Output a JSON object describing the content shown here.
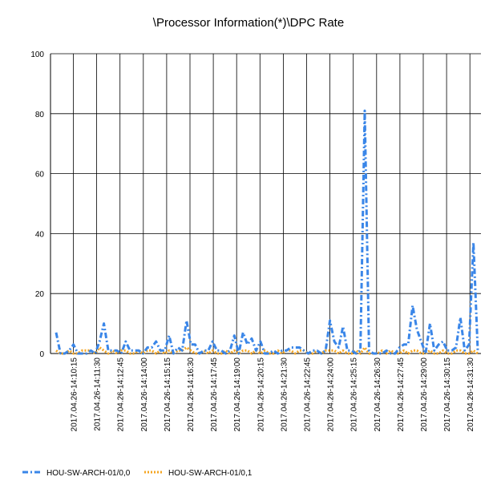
{
  "chart_data": {
    "type": "line",
    "title": "\\Processor Information(*)\\DPC Rate",
    "xlabel": "",
    "ylabel": "",
    "ylim": [
      0,
      100
    ],
    "yticks": [
      0,
      20,
      40,
      60,
      80,
      100
    ],
    "grid": "vertical and horizontal",
    "legend": "bottom-left",
    "x_tick_labels": [
      "2017.04.26-14:10:15",
      "2017.04.26-14:11:30",
      "2017.04.26-14:12:45",
      "2017.04.26-14:14:00",
      "2017.04.26-14:15:15",
      "2017.04.26-14:16:30",
      "2017.04.26-14:17:45",
      "2017.04.26-14:19:00",
      "2017.04.26-14:20:15",
      "2017.04.26-14:21:30",
      "2017.04.26-14:22:45",
      "2017.04.26-14:24:00",
      "2017.04.26-14:25:15",
      "2017.04.26-14:26:30",
      "2017.04.26-14:27:45",
      "2017.04.26-14:29:00",
      "2017.04.26-14:30:15",
      "2017.04.26-14:31:30"
    ],
    "series": [
      {
        "name": "HOU-SW-ARCH-01/0,0",
        "color": "#3a86e8",
        "style": "dash-dot",
        "values": [
          7,
          0,
          0,
          1,
          3,
          0,
          0,
          0,
          1,
          0,
          4,
          10,
          1,
          1,
          1,
          0,
          4,
          1,
          1,
          1,
          0,
          2,
          2,
          4,
          1,
          1,
          6,
          0,
          2,
          1,
          11,
          3,
          3,
          0,
          1,
          1,
          4,
          1,
          1,
          0,
          1,
          6,
          0,
          7,
          3,
          5,
          1,
          4,
          0,
          0,
          1,
          0,
          1,
          1,
          2,
          2,
          2,
          1,
          0,
          1,
          1,
          0,
          1,
          11,
          4,
          2,
          9,
          1,
          1,
          0,
          1,
          81,
          1,
          0,
          0,
          0,
          1,
          0,
          0,
          2,
          3,
          3,
          16,
          8,
          4,
          0,
          10,
          1,
          3,
          4,
          1,
          1,
          2,
          12,
          1,
          3,
          37,
          1
        ]
      },
      {
        "name": "HOU-SW-ARCH-01/0,1",
        "color": "#f5a623",
        "style": "dotted",
        "values": [
          1,
          0,
          0,
          1,
          0,
          0,
          1,
          1,
          1,
          0,
          2,
          1,
          0,
          1,
          0,
          1,
          1,
          0,
          0,
          1,
          0,
          1,
          1,
          0,
          1,
          0,
          1,
          0,
          1,
          1,
          2,
          1,
          0,
          0,
          1,
          0,
          1,
          0,
          0,
          1,
          0,
          1,
          0,
          1,
          1,
          0,
          1,
          0,
          1,
          0,
          0,
          1,
          0,
          1,
          1,
          0,
          1,
          1,
          0,
          0,
          1,
          0,
          1,
          1,
          1,
          0,
          1,
          0,
          0,
          1,
          0,
          2,
          0,
          0,
          0,
          1,
          0,
          1,
          0,
          0,
          1,
          0,
          1,
          1,
          0,
          0,
          1,
          0,
          0,
          1,
          0,
          0,
          1,
          1,
          0,
          0,
          1,
          0
        ]
      }
    ]
  }
}
